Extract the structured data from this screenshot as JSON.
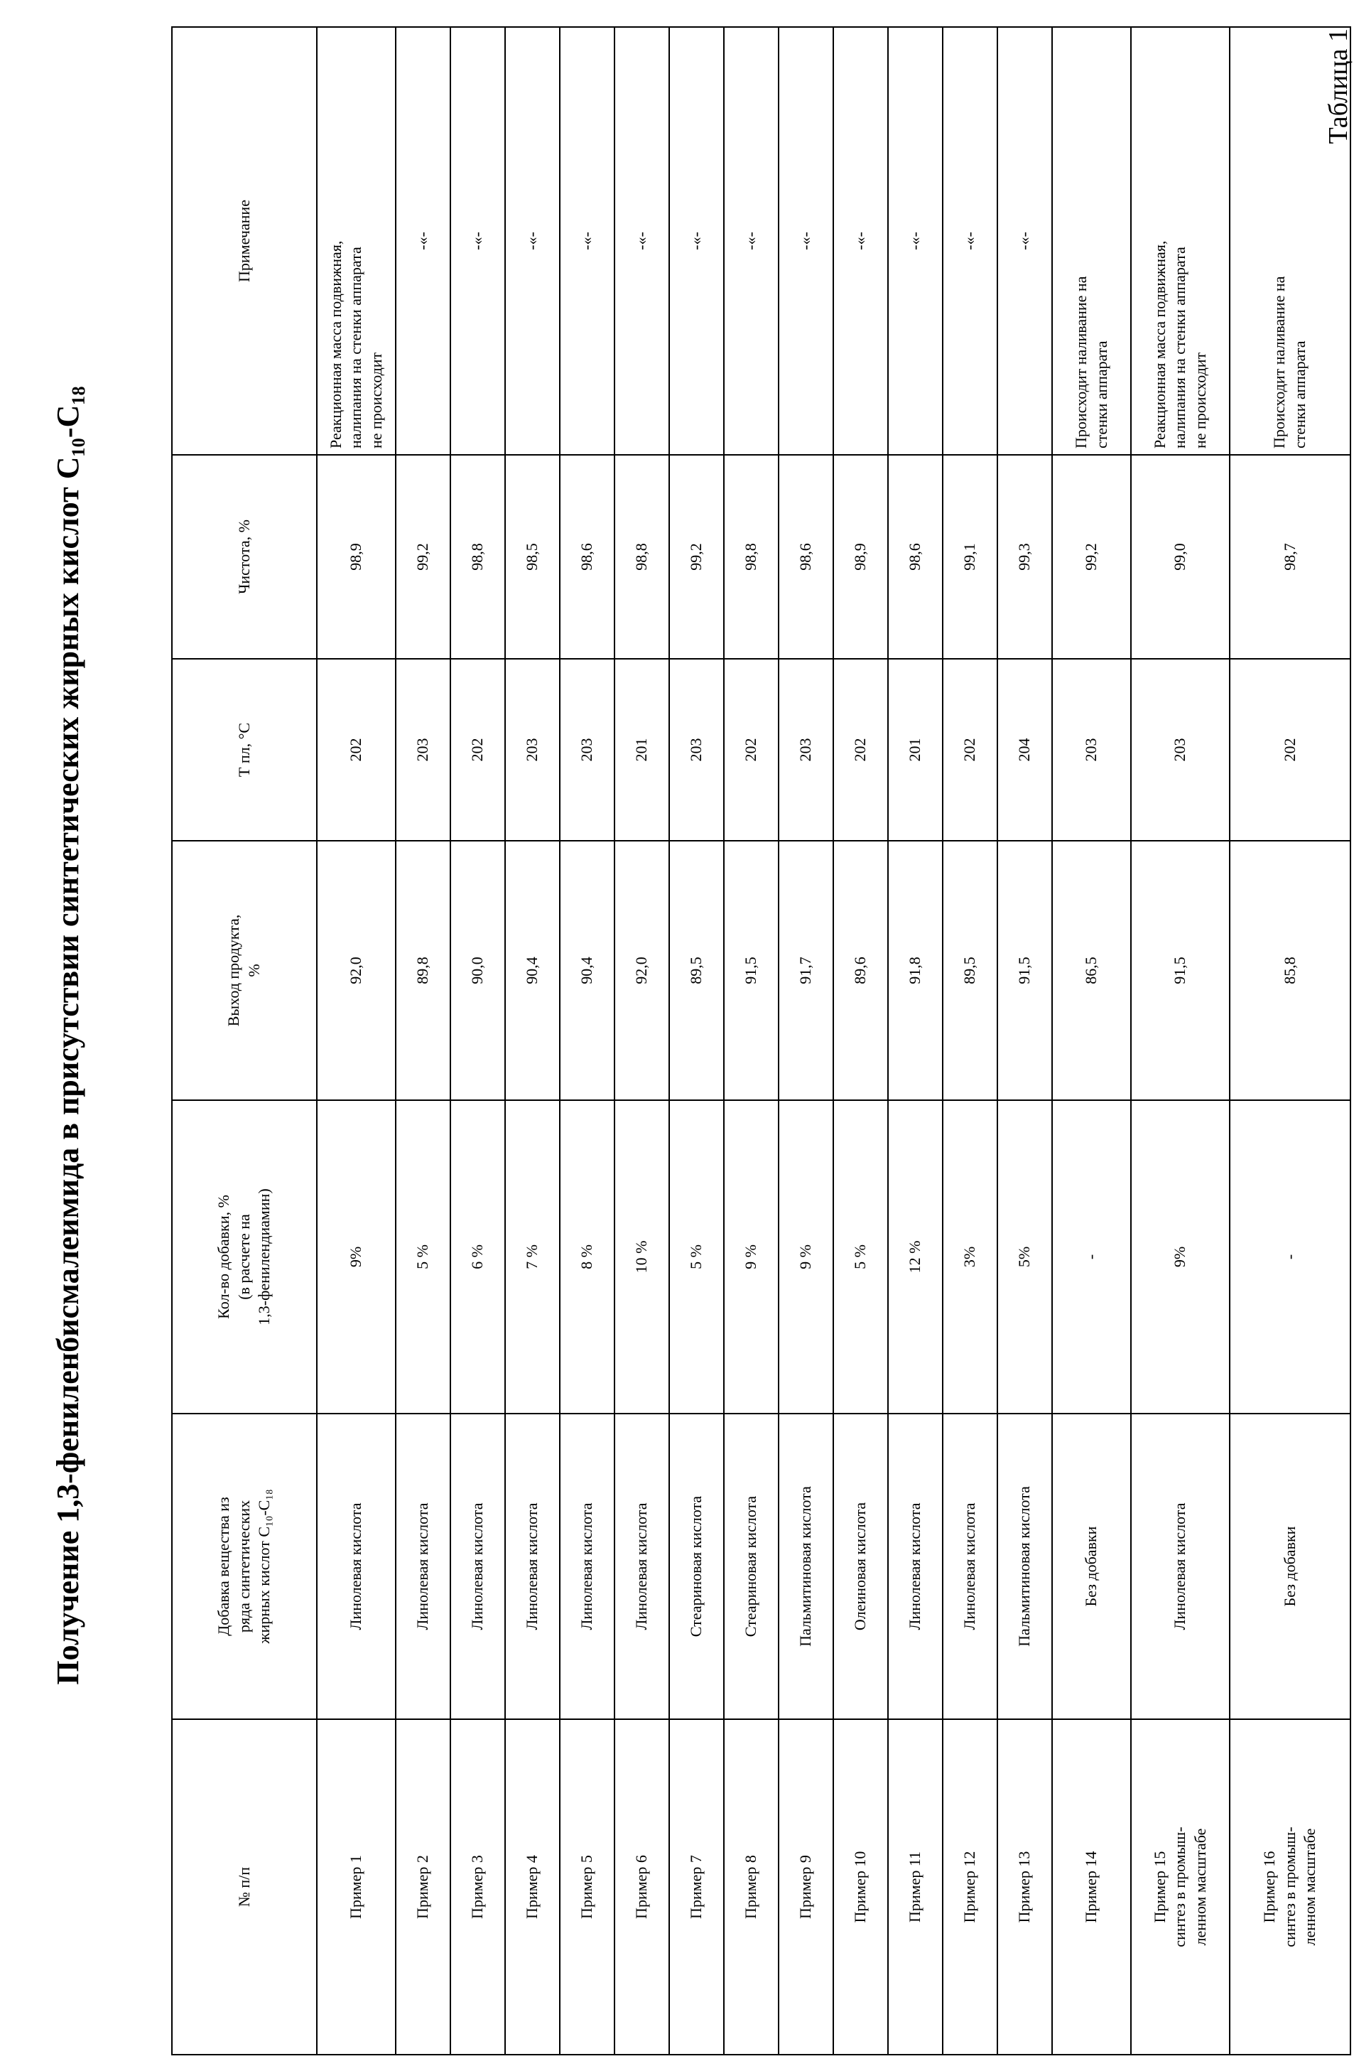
{
  "header": {
    "label": "Таблица 1",
    "title": "Получение 1,3-фениленбисмалеимида в присутствии синтетических жирных кислот C₁₀-C₁₈"
  },
  "table": {
    "columns": [
      "№ п/п",
      "Добавка вещества из\nряда синтетических\nжирных кислот C₁₀-C₁₈",
      "Кол-во добавки, %\n(в расчете на\n1,3-фенилендиамин)",
      "Выход продукта,\n%",
      "Т пл, °С",
      "Чистота, %",
      "Примечание"
    ],
    "rows": [
      [
        "Пример 1",
        "Линолевая кислота",
        "9%",
        "92,0",
        "202",
        "98,9",
        "Реакционная масса подвижная,\nналипания на стенки аппарата\nне происходит"
      ],
      [
        "Пример 2",
        "Линолевая кислота",
        "5 %",
        "89,8",
        "203",
        "99,2",
        "-«-"
      ],
      [
        "Пример 3",
        "Линолевая кислота",
        "6 %",
        "90,0",
        "202",
        "98,8",
        "-«-"
      ],
      [
        "Пример 4",
        "Линолевая кислота",
        "7 %",
        "90,4",
        "203",
        "98,5",
        "-«-"
      ],
      [
        "Пример 5",
        "Линолевая кислота",
        "8 %",
        "90,4",
        "203",
        "98,6",
        "-«-"
      ],
      [
        "Пример 6",
        "Линолевая кислота",
        "10 %",
        "92,0",
        "201",
        "98,8",
        "-«-"
      ],
      [
        "Пример 7",
        "Стеариновая кислота",
        "5 %",
        "89,5",
        "203",
        "99,2",
        "-«-"
      ],
      [
        "Пример 8",
        "Стеариновая кислота",
        "9 %",
        "91,5",
        "202",
        "98,8",
        "-«-"
      ],
      [
        "Пример 9",
        "Пальмитиновая кислота",
        "9 %",
        "91,7",
        "203",
        "98,6",
        "-«-"
      ],
      [
        "Пример 10",
        "Олеиновая кислота",
        "5 %",
        "89,6",
        "202",
        "98,9",
        "-«-"
      ],
      [
        "Пример 11",
        "Линолевая кислота",
        "12 %",
        "91,8",
        "201",
        "98,6",
        "-«-"
      ],
      [
        "Пример 12",
        "Линолевая кислота",
        "3%",
        "89,5",
        "202",
        "99,1",
        "-«-"
      ],
      [
        "Пример 13",
        "Пальмитиновая кислота",
        "5%",
        "91,5",
        "204",
        "99,3",
        "-«-"
      ],
      [
        "Пример 14",
        "Без добавки",
        "-",
        "86,5",
        "203",
        "99,2",
        "Происходит наливание на\nстенки аппарата"
      ],
      [
        "Пример 15\nсинтез в промыш-\nленном масштабе",
        "Линолевая кислота",
        "9%",
        "91,5",
        "203",
        "99,0",
        "Реакционная масса подвижная,\nналипания на стенки аппарата\nне происходит"
      ],
      [
        "Пример 16\nсинтез в промыш-\nленном масштабе",
        "Без добавки",
        "-",
        "85,8",
        "202",
        "98,7",
        "Происходит наливание на\nстенки аппарата"
      ]
    ]
  }
}
